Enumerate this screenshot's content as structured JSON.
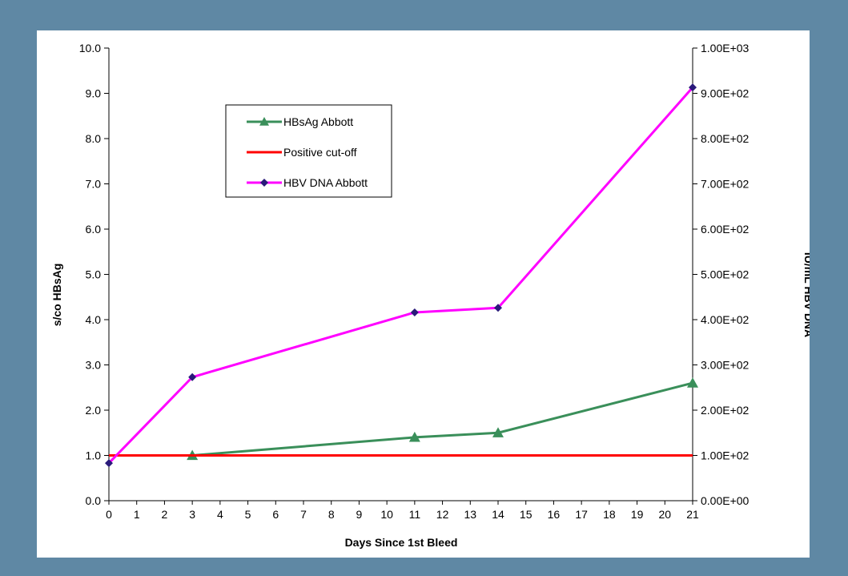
{
  "chart_data": {
    "type": "line",
    "xlabel": "Days Since 1st Bleed",
    "ylabel_left": "s/co HBsAg",
    "ylabel_right": "IU/mL HBV DNA",
    "x_ticks": [
      "0",
      "1",
      "2",
      "3",
      "4",
      "5",
      "6",
      "7",
      "8",
      "9",
      "10",
      "11",
      "12",
      "13",
      "14",
      "15",
      "16",
      "17",
      "18",
      "19",
      "20",
      "21"
    ],
    "xlim": [
      0,
      21
    ],
    "ylim_left": [
      0,
      10
    ],
    "y_ticks_left": [
      "0.0",
      "1.0",
      "2.0",
      "3.0",
      "4.0",
      "5.0",
      "6.0",
      "7.0",
      "8.0",
      "9.0",
      "10.0"
    ],
    "ylim_right": [
      0,
      1000
    ],
    "y_ticks_right": [
      "0.00E+00",
      "1.00E+02",
      "2.00E+02",
      "3.00E+02",
      "4.00E+02",
      "5.00E+02",
      "6.00E+02",
      "7.00E+02",
      "8.00E+02",
      "9.00E+02",
      "1.00E+03"
    ],
    "legend_position": "upper-left",
    "series": [
      {
        "name": "HBsAg Abbott",
        "axis": "left",
        "color": "#3a8f5a",
        "marker": "triangle",
        "x": [
          3,
          11,
          14,
          21
        ],
        "y": [
          1.0,
          1.4,
          1.5,
          2.6
        ]
      },
      {
        "name": "Positive cut-off",
        "axis": "left",
        "color": "#ff0000",
        "marker": "none",
        "x": [
          0,
          21
        ],
        "y": [
          1.0,
          1.0
        ]
      },
      {
        "name": "HBV DNA Abbott",
        "axis": "right",
        "color": "#ff00ff",
        "marker_color": "#2a1a7a",
        "marker": "diamond",
        "x": [
          0,
          3,
          11,
          14,
          21
        ],
        "y": [
          83,
          273,
          416,
          426,
          913
        ]
      }
    ]
  }
}
